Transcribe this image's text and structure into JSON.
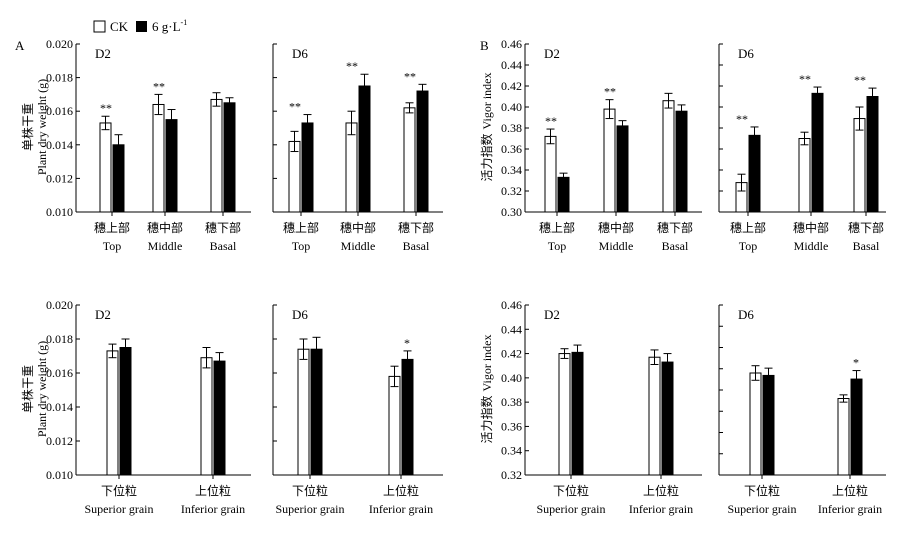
{
  "legend": {
    "ck_label": "CK",
    "treat_label": "6 g·L",
    "treat_sup": "-1"
  },
  "panel_letters": {
    "a": "A",
    "b": "B"
  },
  "y_labels": {
    "weight_cn": "单株干重",
    "weight_en": "Plant dry weight (g)",
    "vigor_cn": "活力指数",
    "vigor_en": "Vigor index"
  },
  "chart_data": [
    {
      "type": "bar",
      "title": "D2",
      "ylim": [
        0.01,
        0.02
      ],
      "yticks": [
        "0.010",
        "0.012",
        "0.014",
        "0.016",
        "0.018",
        "0.020"
      ],
      "categories_cn": [
        "穗上部",
        "穗中部",
        "穗下部"
      ],
      "categories_en": [
        "Top",
        "Middle",
        "Basal"
      ],
      "series": [
        {
          "name": "CK",
          "values": [
            0.0153,
            0.0164,
            0.0167
          ],
          "errors": [
            0.0004,
            0.0006,
            0.0004
          ]
        },
        {
          "name": "6 g·L-1",
          "values": [
            0.014,
            0.0155,
            0.0165
          ],
          "errors": [
            0.0006,
            0.0006,
            0.0003
          ]
        }
      ],
      "annotations": [
        "**",
        "**",
        ""
      ]
    },
    {
      "type": "bar",
      "title": "D6",
      "ylim": [
        0.01,
        0.02
      ],
      "yticks": [],
      "categories_cn": [
        "穗上部",
        "穗中部",
        "穗下部"
      ],
      "categories_en": [
        "Top",
        "Middle",
        "Basal"
      ],
      "series": [
        {
          "name": "CK",
          "values": [
            0.0142,
            0.0153,
            0.0162
          ],
          "errors": [
            0.0006,
            0.0007,
            0.0003
          ]
        },
        {
          "name": "6 g·L-1",
          "values": [
            0.0153,
            0.0175,
            0.0172
          ],
          "errors": [
            0.0005,
            0.0007,
            0.0004
          ]
        }
      ],
      "annotations": [
        "**",
        "**",
        "**"
      ]
    },
    {
      "type": "bar",
      "title": "D2",
      "ylim": [
        0.3,
        0.46
      ],
      "yticks": [
        "0.30",
        "0.32",
        "0.34",
        "0.36",
        "0.38",
        "0.40",
        "0.42",
        "0.44",
        "0.46"
      ],
      "categories_cn": [
        "穗上部",
        "穗中部",
        "穗下部"
      ],
      "categories_en": [
        "Top",
        "Middle",
        "Basal"
      ],
      "series": [
        {
          "name": "CK",
          "values": [
            0.372,
            0.398,
            0.406
          ],
          "errors": [
            0.007,
            0.009,
            0.007
          ]
        },
        {
          "name": "6 g·L-1",
          "values": [
            0.333,
            0.382,
            0.396
          ],
          "errors": [
            0.004,
            0.005,
            0.006
          ]
        }
      ],
      "annotations": [
        "**",
        "**",
        ""
      ]
    },
    {
      "type": "bar",
      "title": "D6",
      "ylim": [
        0.3,
        0.46
      ],
      "yticks": [],
      "categories_cn": [
        "穗上部",
        "穗中部",
        "穗下部"
      ],
      "categories_en": [
        "Top",
        "Middle",
        "Basal"
      ],
      "series": [
        {
          "name": "CK",
          "values": [
            0.328,
            0.37,
            0.389
          ],
          "errors": [
            0.008,
            0.006,
            0.011
          ]
        },
        {
          "name": "6 g·L-1",
          "values": [
            0.373,
            0.413,
            0.41
          ],
          "errors": [
            0.008,
            0.006,
            0.008
          ]
        }
      ],
      "annotations": [
        "**",
        "**",
        "**"
      ]
    },
    {
      "type": "bar",
      "title": "D2",
      "ylim": [
        0.01,
        0.02
      ],
      "yticks": [
        "0.010",
        "0.012",
        "0.014",
        "0.016",
        "0.018",
        "0.020"
      ],
      "categories_cn": [
        "下位粒",
        "上位粒"
      ],
      "categories_en": [
        "Superior grain",
        "Inferior grain"
      ],
      "series": [
        {
          "name": "CK",
          "values": [
            0.0173,
            0.0169
          ],
          "errors": [
            0.0004,
            0.0006
          ]
        },
        {
          "name": "6 g·L-1",
          "values": [
            0.0175,
            0.0167
          ],
          "errors": [
            0.0005,
            0.0005
          ]
        }
      ],
      "annotations": [
        "",
        ""
      ]
    },
    {
      "type": "bar",
      "title": "D6",
      "ylim": [
        0.01,
        0.02
      ],
      "yticks": [],
      "categories_cn": [
        "下位粒",
        "上位粒"
      ],
      "categories_en": [
        "Superior grain",
        "Inferior grain"
      ],
      "series": [
        {
          "name": "CK",
          "values": [
            0.0174,
            0.0158
          ],
          "errors": [
            0.0006,
            0.0006
          ]
        },
        {
          "name": "6 g·L-1",
          "values": [
            0.0174,
            0.0168
          ],
          "errors": [
            0.0007,
            0.0005
          ]
        }
      ],
      "annotations": [
        "",
        "*"
      ]
    },
    {
      "type": "bar",
      "title": "D2",
      "ylim": [
        0.32,
        0.46
      ],
      "yticks": [
        "0.32",
        "0.34",
        "0.36",
        "0.38",
        "0.40",
        "0.42",
        "0.44",
        "0.46"
      ],
      "categories_cn": [
        "下位粒",
        "上位粒"
      ],
      "categories_en": [
        "Superior grain",
        "Inferior grain"
      ],
      "series": [
        {
          "name": "CK",
          "values": [
            0.42,
            0.417
          ],
          "errors": [
            0.004,
            0.006
          ]
        },
        {
          "name": "6 g·L-1",
          "values": [
            0.421,
            0.413
          ],
          "errors": [
            0.006,
            0.007
          ]
        }
      ],
      "annotations": [
        "",
        ""
      ]
    },
    {
      "type": "bar",
      "title": "D6",
      "ylim": [
        0.32,
        0.46
      ],
      "yticks": [],
      "categories_cn": [
        "下位粒",
        "上位粒"
      ],
      "categories_en": [
        "Superior grain",
        "Inferior grain"
      ],
      "series": [
        {
          "name": "CK",
          "values": [
            0.404,
            0.383
          ],
          "errors": [
            0.006,
            0.003
          ]
        },
        {
          "name": "6 g·L-1",
          "values": [
            0.402,
            0.399
          ],
          "errors": [
            0.006,
            0.007
          ]
        }
      ],
      "annotations": [
        "",
        "*"
      ]
    }
  ]
}
